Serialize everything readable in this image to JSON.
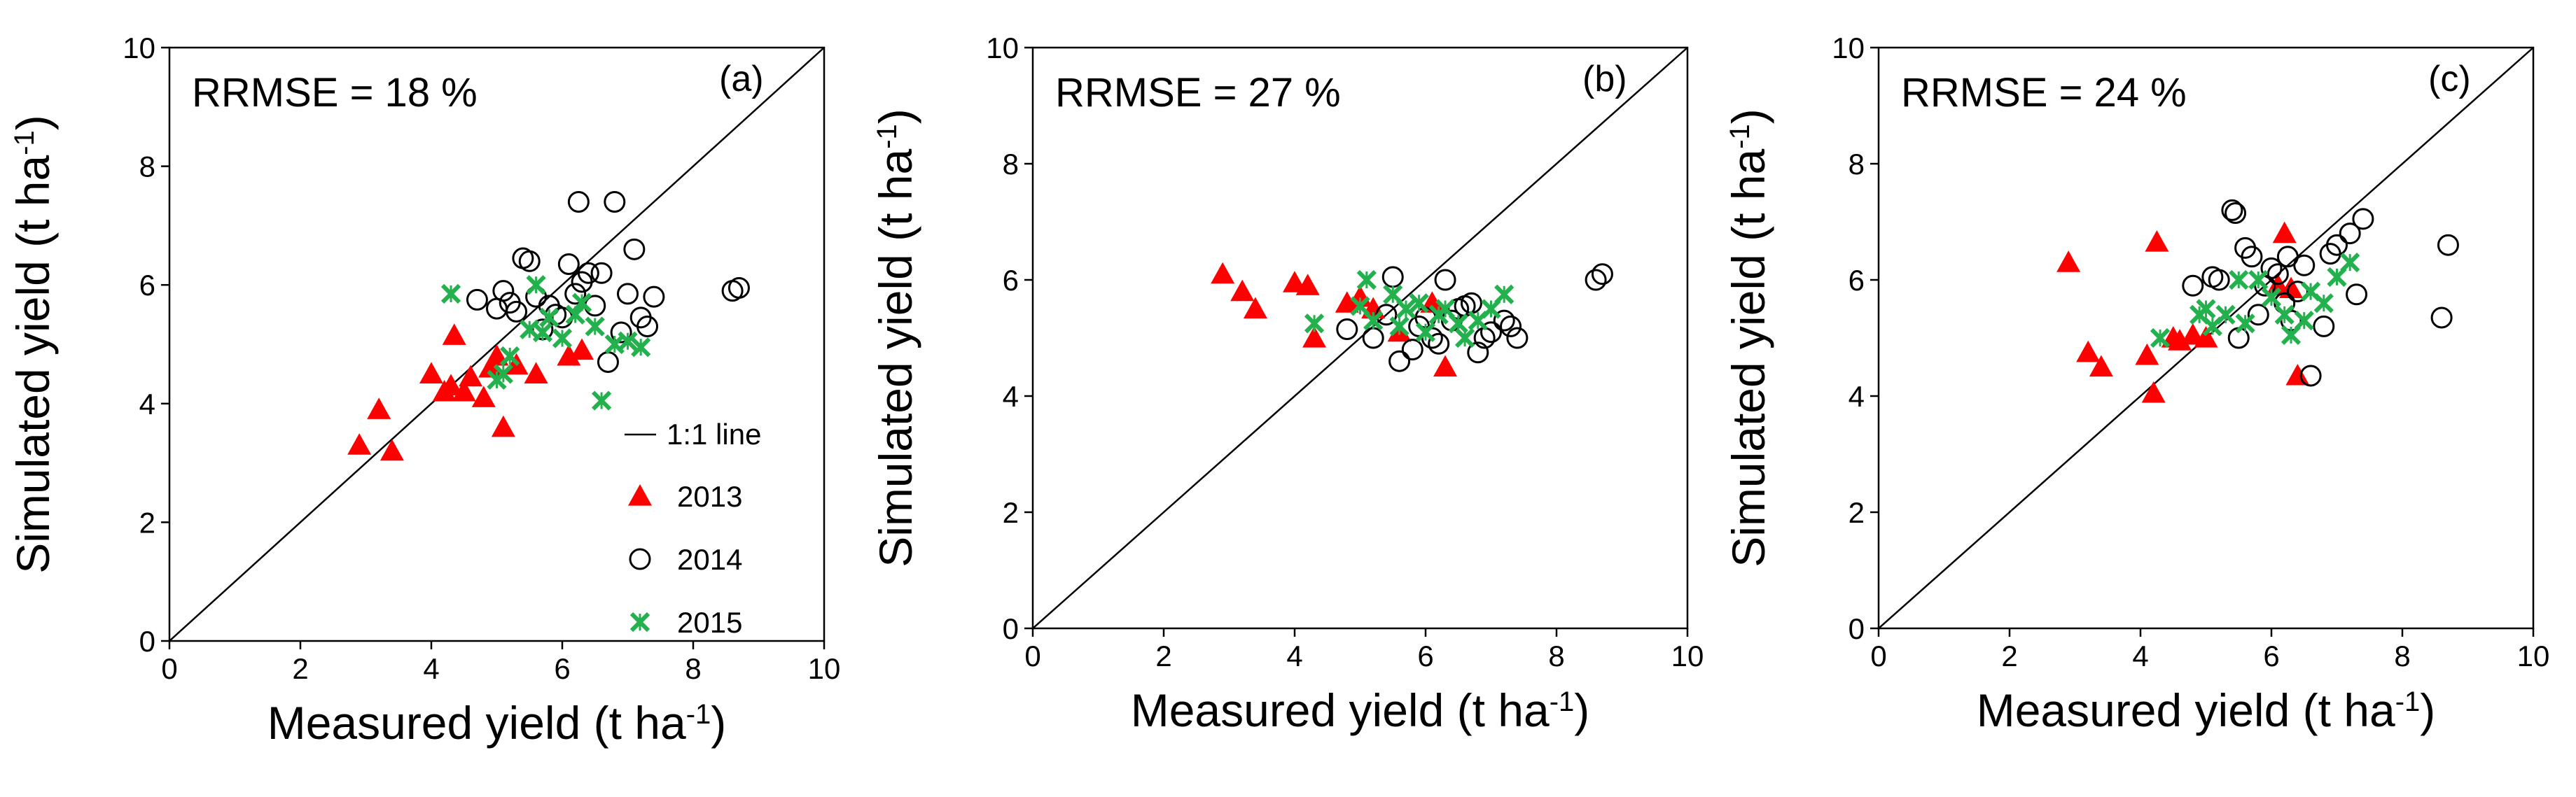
{
  "figure": {
    "legend": {
      "line_label": "1:1 line",
      "entries": [
        {
          "year": "2013",
          "marker": "triangle",
          "color": "#ff0000"
        },
        {
          "year": "2014",
          "marker": "circle",
          "color": "#000000"
        },
        {
          "year": "2015",
          "marker": "cross",
          "color": "#22b14c"
        }
      ]
    }
  },
  "chart_data": [
    {
      "type": "scatter",
      "panel_label": "(a)",
      "annotation": "RRMSE = 18 %",
      "xlabel_main": "Measured  yield (t ha",
      "ylabel_main": "Simulated  yield (t ha",
      "unit_superscript": "-1",
      "unit_close": ")",
      "xlim": [
        0,
        10
      ],
      "ylim": [
        0,
        10
      ],
      "xticks": [
        0,
        2,
        4,
        6,
        8,
        10
      ],
      "yticks": [
        0,
        2,
        4,
        6,
        8,
        10
      ],
      "tick_labels": [
        "0",
        "2",
        "4",
        "6",
        "8",
        "10"
      ],
      "series": [
        {
          "name": "2013",
          "x": [
            2.9,
            3.2,
            3.4,
            4.0,
            4.2,
            4.3,
            4.35,
            4.5,
            4.6,
            4.8,
            4.9,
            5.0,
            5.1,
            5.3,
            5.6,
            6.1,
            6.3
          ],
          "y": [
            3.3,
            3.9,
            3.2,
            4.5,
            4.2,
            4.3,
            5.15,
            4.2,
            4.45,
            4.1,
            4.6,
            4.8,
            3.6,
            4.65,
            4.5,
            4.8,
            4.9
          ]
        },
        {
          "name": "2014",
          "x": [
            4.7,
            5.0,
            5.1,
            5.2,
            5.3,
            5.4,
            5.5,
            5.6,
            5.7,
            5.8,
            5.9,
            6.0,
            6.1,
            6.2,
            6.25,
            6.3,
            6.4,
            6.5,
            6.6,
            6.7,
            6.8,
            6.9,
            7.0,
            7.1,
            7.2,
            7.3,
            7.4,
            8.6,
            8.7
          ],
          "y": [
            5.75,
            5.6,
            5.9,
            5.7,
            5.55,
            6.45,
            6.4,
            5.8,
            5.25,
            5.65,
            5.5,
            5.45,
            6.35,
            5.85,
            7.4,
            6.05,
            6.2,
            5.65,
            6.2,
            4.7,
            7.4,
            5.2,
            5.85,
            6.6,
            5.45,
            5.3,
            5.8,
            5.9,
            5.95
          ]
        },
        {
          "name": "2015",
          "x": [
            4.3,
            5.0,
            5.1,
            5.2,
            5.5,
            5.6,
            5.7,
            5.8,
            6.0,
            6.2,
            6.3,
            6.5,
            6.6,
            6.8,
            7.0,
            7.2
          ],
          "y": [
            5.85,
            4.4,
            4.5,
            4.8,
            5.25,
            6.0,
            5.2,
            5.45,
            5.1,
            5.5,
            5.7,
            5.3,
            4.05,
            5.0,
            5.05,
            4.95
          ]
        }
      ]
    },
    {
      "type": "scatter",
      "panel_label": "(b)",
      "annotation": "RRMSE = 27 %",
      "xlabel_main": "Measured  yield (t ha",
      "ylabel_main": "Simulated  yield (t ha",
      "unit_superscript": "-1",
      "unit_close": ")",
      "xlim": [
        0,
        10
      ],
      "ylim": [
        0,
        10
      ],
      "xticks": [
        0,
        2,
        4,
        6,
        8,
        10
      ],
      "yticks": [
        0,
        2,
        4,
        6,
        8,
        10
      ],
      "tick_labels": [
        "0",
        "2",
        "4",
        "6",
        "8",
        "10"
      ],
      "series": [
        {
          "name": "2013",
          "x": [
            2.9,
            3.2,
            3.4,
            4.0,
            4.2,
            4.3,
            4.8,
            5.0,
            5.2,
            5.6,
            6.1,
            6.3
          ],
          "y": [
            6.1,
            5.8,
            5.5,
            5.95,
            5.9,
            5.0,
            5.6,
            5.7,
            5.5,
            5.1,
            5.6,
            4.5
          ]
        },
        {
          "name": "2014",
          "x": [
            4.8,
            5.2,
            5.4,
            5.5,
            5.6,
            5.8,
            5.9,
            6.0,
            6.1,
            6.2,
            6.3,
            6.4,
            6.5,
            6.6,
            6.7,
            6.8,
            6.9,
            7.0,
            7.2,
            7.3,
            7.4,
            8.6,
            8.7
          ],
          "y": [
            5.15,
            5.0,
            5.4,
            6.05,
            4.6,
            4.8,
            5.2,
            5.35,
            5.0,
            4.9,
            6.0,
            5.3,
            5.5,
            5.55,
            5.6,
            4.75,
            5.0,
            5.1,
            5.3,
            5.2,
            5.0,
            6.0,
            6.1
          ]
        },
        {
          "name": "2015",
          "x": [
            4.3,
            5.0,
            5.1,
            5.2,
            5.5,
            5.6,
            5.7,
            5.9,
            6.0,
            6.2,
            6.3,
            6.5,
            6.6,
            6.8,
            7.0,
            7.2
          ],
          "y": [
            5.25,
            5.55,
            6.0,
            5.3,
            5.75,
            5.2,
            5.5,
            5.6,
            5.1,
            5.4,
            5.5,
            5.25,
            5.0,
            5.3,
            5.5,
            5.75
          ]
        }
      ]
    },
    {
      "type": "scatter",
      "panel_label": "(c)",
      "annotation": "RRMSE = 24 %",
      "xlabel_main": "Measured yield    (t ha",
      "ylabel_main": "Simulated yield (t ha",
      "unit_superscript": "-1",
      "unit_close": ")",
      "xlim": [
        0,
        10
      ],
      "ylim": [
        0,
        10
      ],
      "xticks": [
        0,
        2,
        4,
        6,
        8,
        10
      ],
      "yticks": [
        0,
        2,
        4,
        6,
        8,
        10
      ],
      "tick_labels": [
        "0",
        "2",
        "4",
        "6",
        "8",
        "10"
      ],
      "series": [
        {
          "name": "2013",
          "x": [
            2.9,
            3.2,
            3.4,
            4.1,
            4.2,
            4.25,
            4.5,
            4.6,
            4.8,
            5.0,
            6.1,
            6.2,
            6.3,
            6.4
          ],
          "y": [
            6.3,
            4.75,
            4.5,
            4.7,
            4.05,
            6.65,
            5.0,
            4.95,
            5.05,
            5.0,
            5.9,
            6.8,
            5.85,
            4.35
          ]
        },
        {
          "name": "2014",
          "x": [
            4.8,
            5.1,
            5.2,
            5.4,
            5.45,
            5.5,
            5.6,
            5.7,
            5.8,
            5.9,
            6.0,
            6.1,
            6.2,
            6.25,
            6.3,
            6.4,
            6.5,
            6.6,
            6.8,
            6.9,
            7.0,
            7.2,
            7.3,
            7.4,
            8.6,
            8.7
          ],
          "y": [
            5.9,
            6.05,
            6.0,
            7.2,
            7.15,
            5.0,
            6.55,
            6.4,
            5.4,
            5.9,
            6.2,
            6.1,
            5.6,
            6.4,
            5.3,
            5.8,
            6.25,
            4.35,
            5.2,
            6.45,
            6.6,
            6.8,
            5.75,
            7.05,
            5.35,
            6.6
          ]
        },
        {
          "name": "2015",
          "x": [
            4.3,
            4.9,
            5.0,
            5.1,
            5.3,
            5.5,
            5.6,
            5.8,
            6.0,
            6.2,
            6.3,
            6.5,
            6.6,
            6.8,
            7.0,
            7.2
          ],
          "y": [
            5.0,
            5.4,
            5.5,
            5.2,
            5.4,
            6.0,
            5.25,
            6.0,
            5.7,
            5.4,
            5.05,
            5.3,
            5.8,
            5.6,
            6.05,
            6.3
          ]
        }
      ]
    }
  ]
}
